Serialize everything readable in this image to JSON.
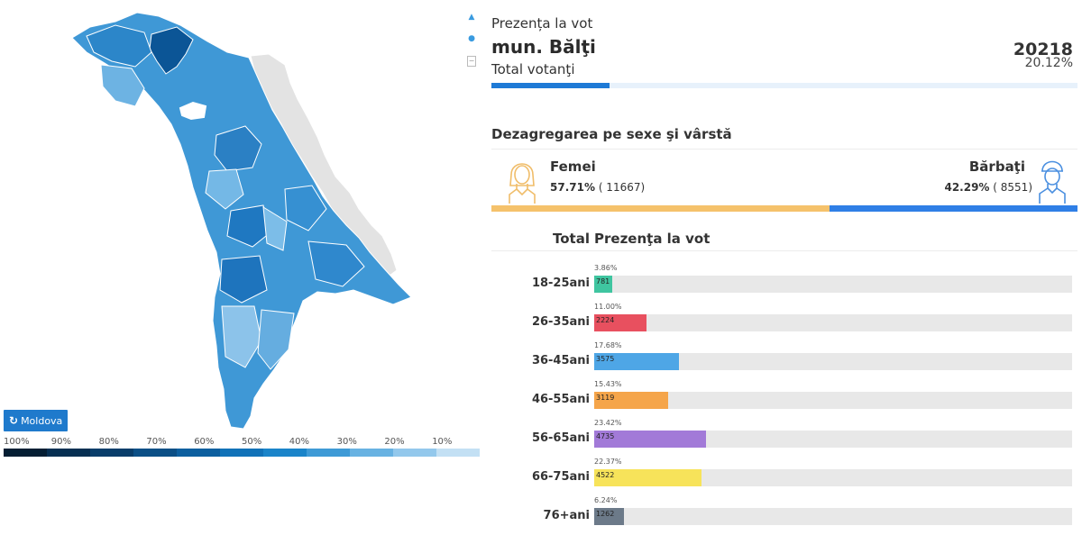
{
  "map": {
    "reset_label": "Moldova",
    "legend_labels": [
      "100%",
      "90%",
      "80%",
      "70%",
      "60%",
      "50%",
      "40%",
      "30%",
      "20%",
      "10%"
    ],
    "legend_colors": [
      "#041e33",
      "#062f52",
      "#083d6a",
      "#0b4f86",
      "#0d5f9f",
      "#1172b8",
      "#1a84c9",
      "#3e9ad6",
      "#68b2e2",
      "#93c8ec",
      "#c3e0f4"
    ],
    "zoom_in_icon": "zoom-in-icon",
    "zoom_out_icon": "zoom-out-icon",
    "reset_icon": "refresh-icon"
  },
  "summary": {
    "title": "Prezența la vot",
    "region": "mun. Bălţi",
    "voters_label": "Total votanţi",
    "total_count": "20218",
    "total_percent": "20.12%",
    "total_fraction": 0.2012,
    "bar_color": "#1e7ad6"
  },
  "gender": {
    "heading": "Dezagregarea pe sexe şi vârstă",
    "female": {
      "label": "Femei",
      "percent": "57.71%",
      "count": "( 11667)",
      "fraction": 0.5771,
      "color": "#f5c26b"
    },
    "male": {
      "label": "Bărbaţi",
      "percent": "42.29%",
      "count": "( 8551)",
      "fraction": 0.4229,
      "color": "#2f7fe6"
    }
  },
  "age": {
    "heading_total": "Total",
    "heading_turnout": "Prezenţa la vot",
    "rows": [
      {
        "label": "18-25ani",
        "percent": "3.86%",
        "count": "781",
        "fraction": 0.0386,
        "color": "#3fc5a0"
      },
      {
        "label": "26-35ani",
        "percent": "11.00%",
        "count": "2224",
        "fraction": 0.11,
        "color": "#e8505f"
      },
      {
        "label": "36-45ani",
        "percent": "17.68%",
        "count": "3575",
        "fraction": 0.1768,
        "color": "#4ea6e6"
      },
      {
        "label": "46-55ani",
        "percent": "15.43%",
        "count": "3119",
        "fraction": 0.1543,
        "color": "#f5a54a"
      },
      {
        "label": "56-65ani",
        "percent": "23.42%",
        "count": "4735",
        "fraction": 0.2342,
        "color": "#a27ad8"
      },
      {
        "label": "66-75ani",
        "percent": "22.37%",
        "count": "4522",
        "fraction": 0.2237,
        "color": "#f7e35a"
      },
      {
        "label": "76+ani",
        "percent": "6.24%",
        "count": "1262",
        "fraction": 0.0624,
        "color": "#6c7a89"
      }
    ]
  }
}
